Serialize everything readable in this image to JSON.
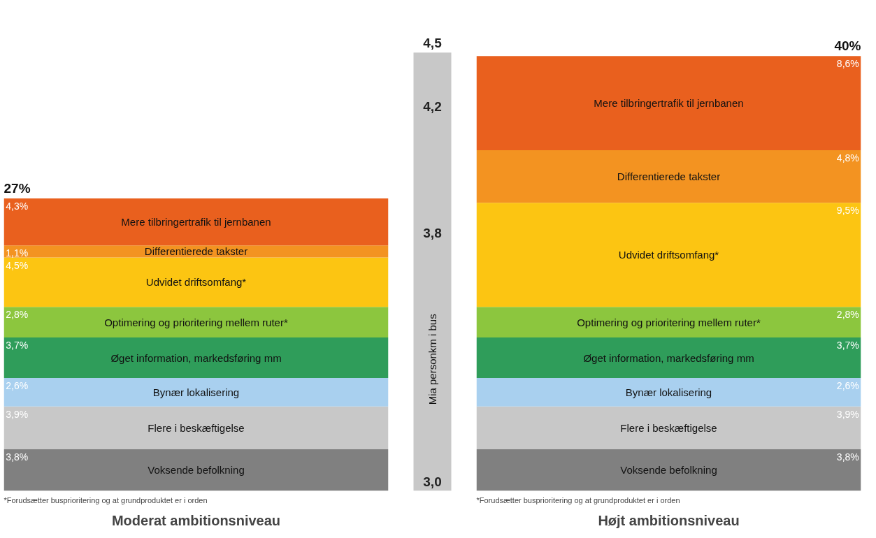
{
  "chart_data": [
    {
      "type": "bar",
      "stacked": true,
      "categories": [
        null
      ],
      "xlabel": "Moderat ambitionsniveau",
      "totals": [
        "27%"
      ],
      "annotations": [
        "*Forudsætter busprioritering og at grundproduktet er i orden"
      ],
      "series": [
        {
          "name": "Voksende befolkning",
          "color": "#808080",
          "values": [
            3.8
          ],
          "value_labels": [
            "3,8%"
          ]
        },
        {
          "name": "Flere i beskæftigelse",
          "color": "#c8c8c8",
          "values": [
            3.9
          ],
          "value_labels": [
            "3,9%"
          ]
        },
        {
          "name": "Bynær lokalisering",
          "color": "#a9d0ef",
          "values": [
            2.6
          ],
          "value_labels": [
            "2,6%"
          ]
        },
        {
          "name": "Øget information, markedsføring mm",
          "color": "#2f9d5a",
          "values": [
            3.7
          ],
          "value_labels": [
            "3,7%"
          ]
        },
        {
          "name": "Optimering og prioritering mellem ruter*",
          "color": "#8cc63e",
          "values": [
            2.8
          ],
          "value_labels": [
            "2,8%"
          ]
        },
        {
          "name": "Udvidet driftsomfang*",
          "color": "#fcc512",
          "values": [
            4.5
          ],
          "value_labels": [
            "4,5%"
          ]
        },
        {
          "name": "Differentierede takster",
          "color": "#f39321",
          "values": [
            1.1
          ],
          "value_labels": [
            "1,1%"
          ]
        },
        {
          "name": "Mere tilbringertrafik til jernbanen",
          "color": "#e9601e",
          "values": [
            4.3
          ],
          "value_labels": [
            "4,3%"
          ]
        }
      ]
    },
    {
      "type": "other",
      "ylabel": "Mia personkm i bus",
      "annotations": [
        "4,5",
        "4,2",
        "3,8",
        "3,0"
      ]
    },
    {
      "type": "bar",
      "stacked": true,
      "categories": [
        null
      ],
      "xlabel": "Højt ambitionsniveau",
      "totals": [
        "40%"
      ],
      "annotations": [
        "*Forudsætter busprioritering og at grundproduktet er i orden"
      ],
      "series": [
        {
          "name": "Voksende befolkning",
          "color": "#808080",
          "values": [
            3.8
          ],
          "value_labels": [
            "3,8%"
          ]
        },
        {
          "name": "Flere i beskæftigelse",
          "color": "#c8c8c8",
          "values": [
            3.9
          ],
          "value_labels": [
            "3,9%"
          ]
        },
        {
          "name": "Bynær lokalisering",
          "color": "#a9d0ef",
          "values": [
            2.6
          ],
          "value_labels": [
            "2,6%"
          ]
        },
        {
          "name": "Øget information, markedsføring mm",
          "color": "#2f9d5a",
          "values": [
            3.7
          ],
          "value_labels": [
            "3,7%"
          ]
        },
        {
          "name": "Optimering og prioritering mellem ruter*",
          "color": "#8cc63e",
          "values": [
            2.8
          ],
          "value_labels": [
            "2,8%"
          ]
        },
        {
          "name": "Udvidet driftsomfang*",
          "color": "#fcc512",
          "values": [
            9.5
          ],
          "value_labels": [
            "9,5%"
          ]
        },
        {
          "name": "Differentierede takster",
          "color": "#f39321",
          "values": [
            4.8
          ],
          "value_labels": [
            "4,8%"
          ]
        },
        {
          "name": "Mere tilbringertrafik til jernbanen",
          "color": "#e9601e",
          "values": [
            8.6
          ],
          "value_labels": [
            "8,6%"
          ]
        }
      ]
    }
  ]
}
